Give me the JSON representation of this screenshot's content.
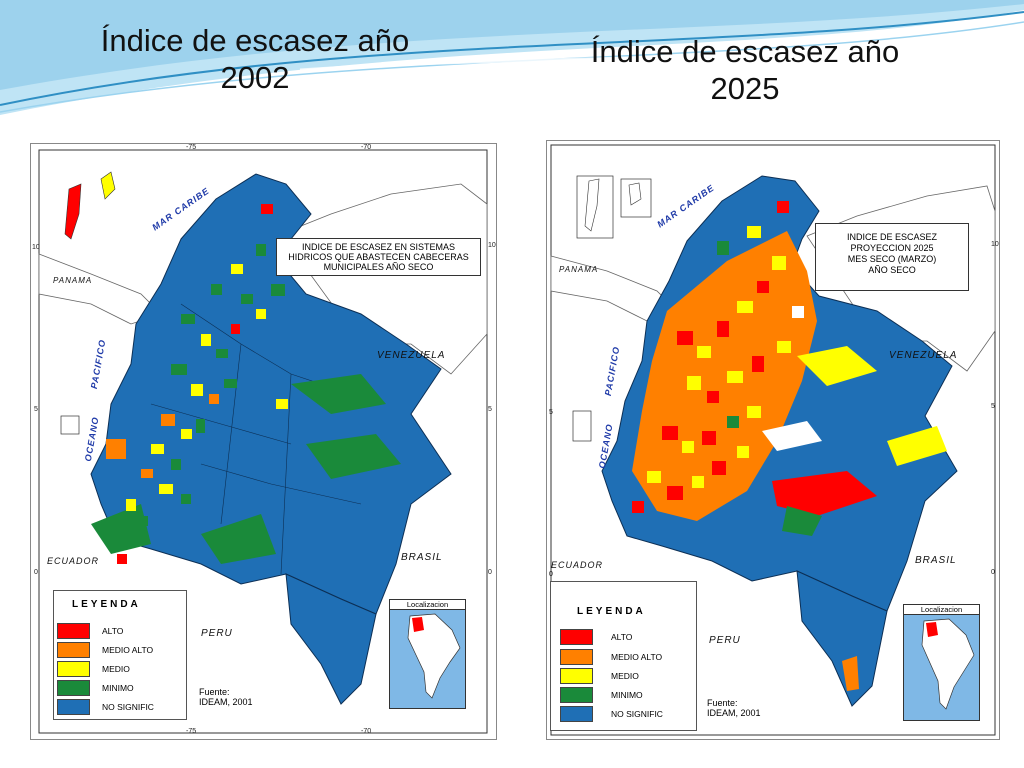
{
  "slide": {
    "title_left": [
      "Índice de escasez año",
      "2002"
    ],
    "title_right": [
      "Índice de escasez año",
      "2025"
    ],
    "colors": {
      "swoosh_dark": "#2f8fc4",
      "swoosh_light": "#bfe4f5"
    }
  },
  "maps": [
    {
      "id": "2002",
      "info_box": [
        "INDICE DE ESCASEZ EN SISTEMAS",
        "HIDRICOS QUE ABASTECEN CABECERAS",
        "MUNICIPALES AÑO SECO"
      ],
      "dominant_class": "NO SIGNIFIC",
      "source": [
        "Fuente:",
        "IDEAM, 2001"
      ],
      "coords": {
        "top": [
          "-75",
          "-70"
        ],
        "bottom": [
          "-75",
          "-70"
        ],
        "left": [
          "10",
          "5",
          "0"
        ],
        "right": [
          "10",
          "5",
          "0"
        ]
      }
    },
    {
      "id": "2025",
      "info_box": [
        "INDICE DE ESCASEZ",
        "PROYECCION 2025",
        "MES SECO (MARZO)",
        "AÑO SECO"
      ],
      "dominant_class": "ALTO / MEDIO ALTO",
      "source": [
        "Fuente:",
        "IDEAM, 2001"
      ],
      "coords": {
        "left": [
          "5",
          "0"
        ],
        "right": [
          "10",
          "5",
          "0"
        ]
      }
    }
  ],
  "labels": {
    "mar_caribe": "MAR CARIBE",
    "oceano": "OCEANO",
    "pacifico": "PACIFICO",
    "panama": "PANAMA",
    "venezuela": "VENEZUELA",
    "ecuador": "ECUADOR",
    "brasil": "BRASIL",
    "peru": "PERU",
    "localizacion": "Localizacion"
  },
  "legend": {
    "title": "LEYENDA",
    "items": [
      {
        "label": "ALTO",
        "color": "#ff0000"
      },
      {
        "label": "MEDIO ALTO",
        "color": "#ff8000"
      },
      {
        "label": "MEDIO",
        "color": "#ffff00"
      },
      {
        "label": "MINIMO",
        "color": "#1a8a3a"
      },
      {
        "label": "NO SIGNIFIC",
        "color": "#1f6fb5"
      }
    ]
  }
}
